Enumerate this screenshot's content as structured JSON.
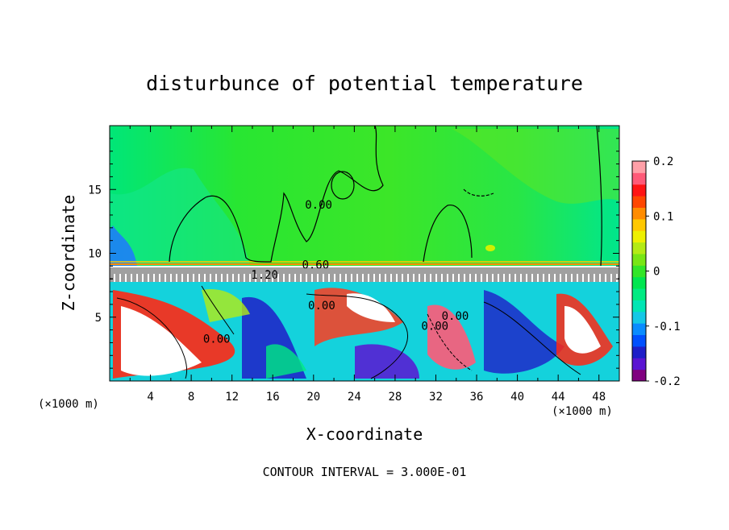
{
  "chart_data": {
    "type": "heatmap",
    "title": "disturbunce of potential temperature",
    "xlabel": "X-coordinate",
    "ylabel": "Z-coordinate",
    "x_unit": "(×1000 m)",
    "z_unit": "(×1000 m)",
    "footnote": "CONTOUR INTERVAL = 3.000E-01",
    "xlim": [
      0,
      50
    ],
    "ylim": [
      0,
      20
    ],
    "x_ticks": [
      4,
      8,
      12,
      16,
      20,
      24,
      28,
      32,
      36,
      40,
      44,
      48
    ],
    "y_ticks": [
      5,
      10,
      15
    ],
    "contour_labels": [
      {
        "text": "0.60",
        "x": 20.2,
        "z": 8.8
      },
      {
        "text": "1.20",
        "x": 15.2,
        "z": 8.0
      },
      {
        "text": "0.00",
        "x": 20.8,
        "z": 5.6
      },
      {
        "text": "0.00",
        "x": 20.5,
        "z": 13.5
      },
      {
        "text": "0.00",
        "x": 10.5,
        "z": 3.0
      },
      {
        "text": "0.00",
        "x": 31.9,
        "z": 4.0
      },
      {
        "text": "0.00",
        "x": 33.9,
        "z": 4.8
      }
    ],
    "colorbar": {
      "ticks": [
        {
          "value": 0.2,
          "label": "0.2"
        },
        {
          "value": 0.1,
          "label": "0.1"
        },
        {
          "value": 0.0,
          "label": "0"
        },
        {
          "value": -0.1,
          "label": "-0.1"
        },
        {
          "value": -0.2,
          "label": "-0.2"
        }
      ],
      "range": [
        -0.2,
        0.2
      ],
      "colors": [
        "#800080",
        "#5a14d2",
        "#1e1ec8",
        "#0050ff",
        "#0a8cff",
        "#14c8e6",
        "#00e6b4",
        "#00eb82",
        "#00e650",
        "#32e628",
        "#78e614",
        "#b4eb14",
        "#eef000",
        "#ffc800",
        "#ff8c00",
        "#ff4600",
        "#ff1414",
        "#ff5a78",
        "#ffa0a8"
      ]
    }
  }
}
